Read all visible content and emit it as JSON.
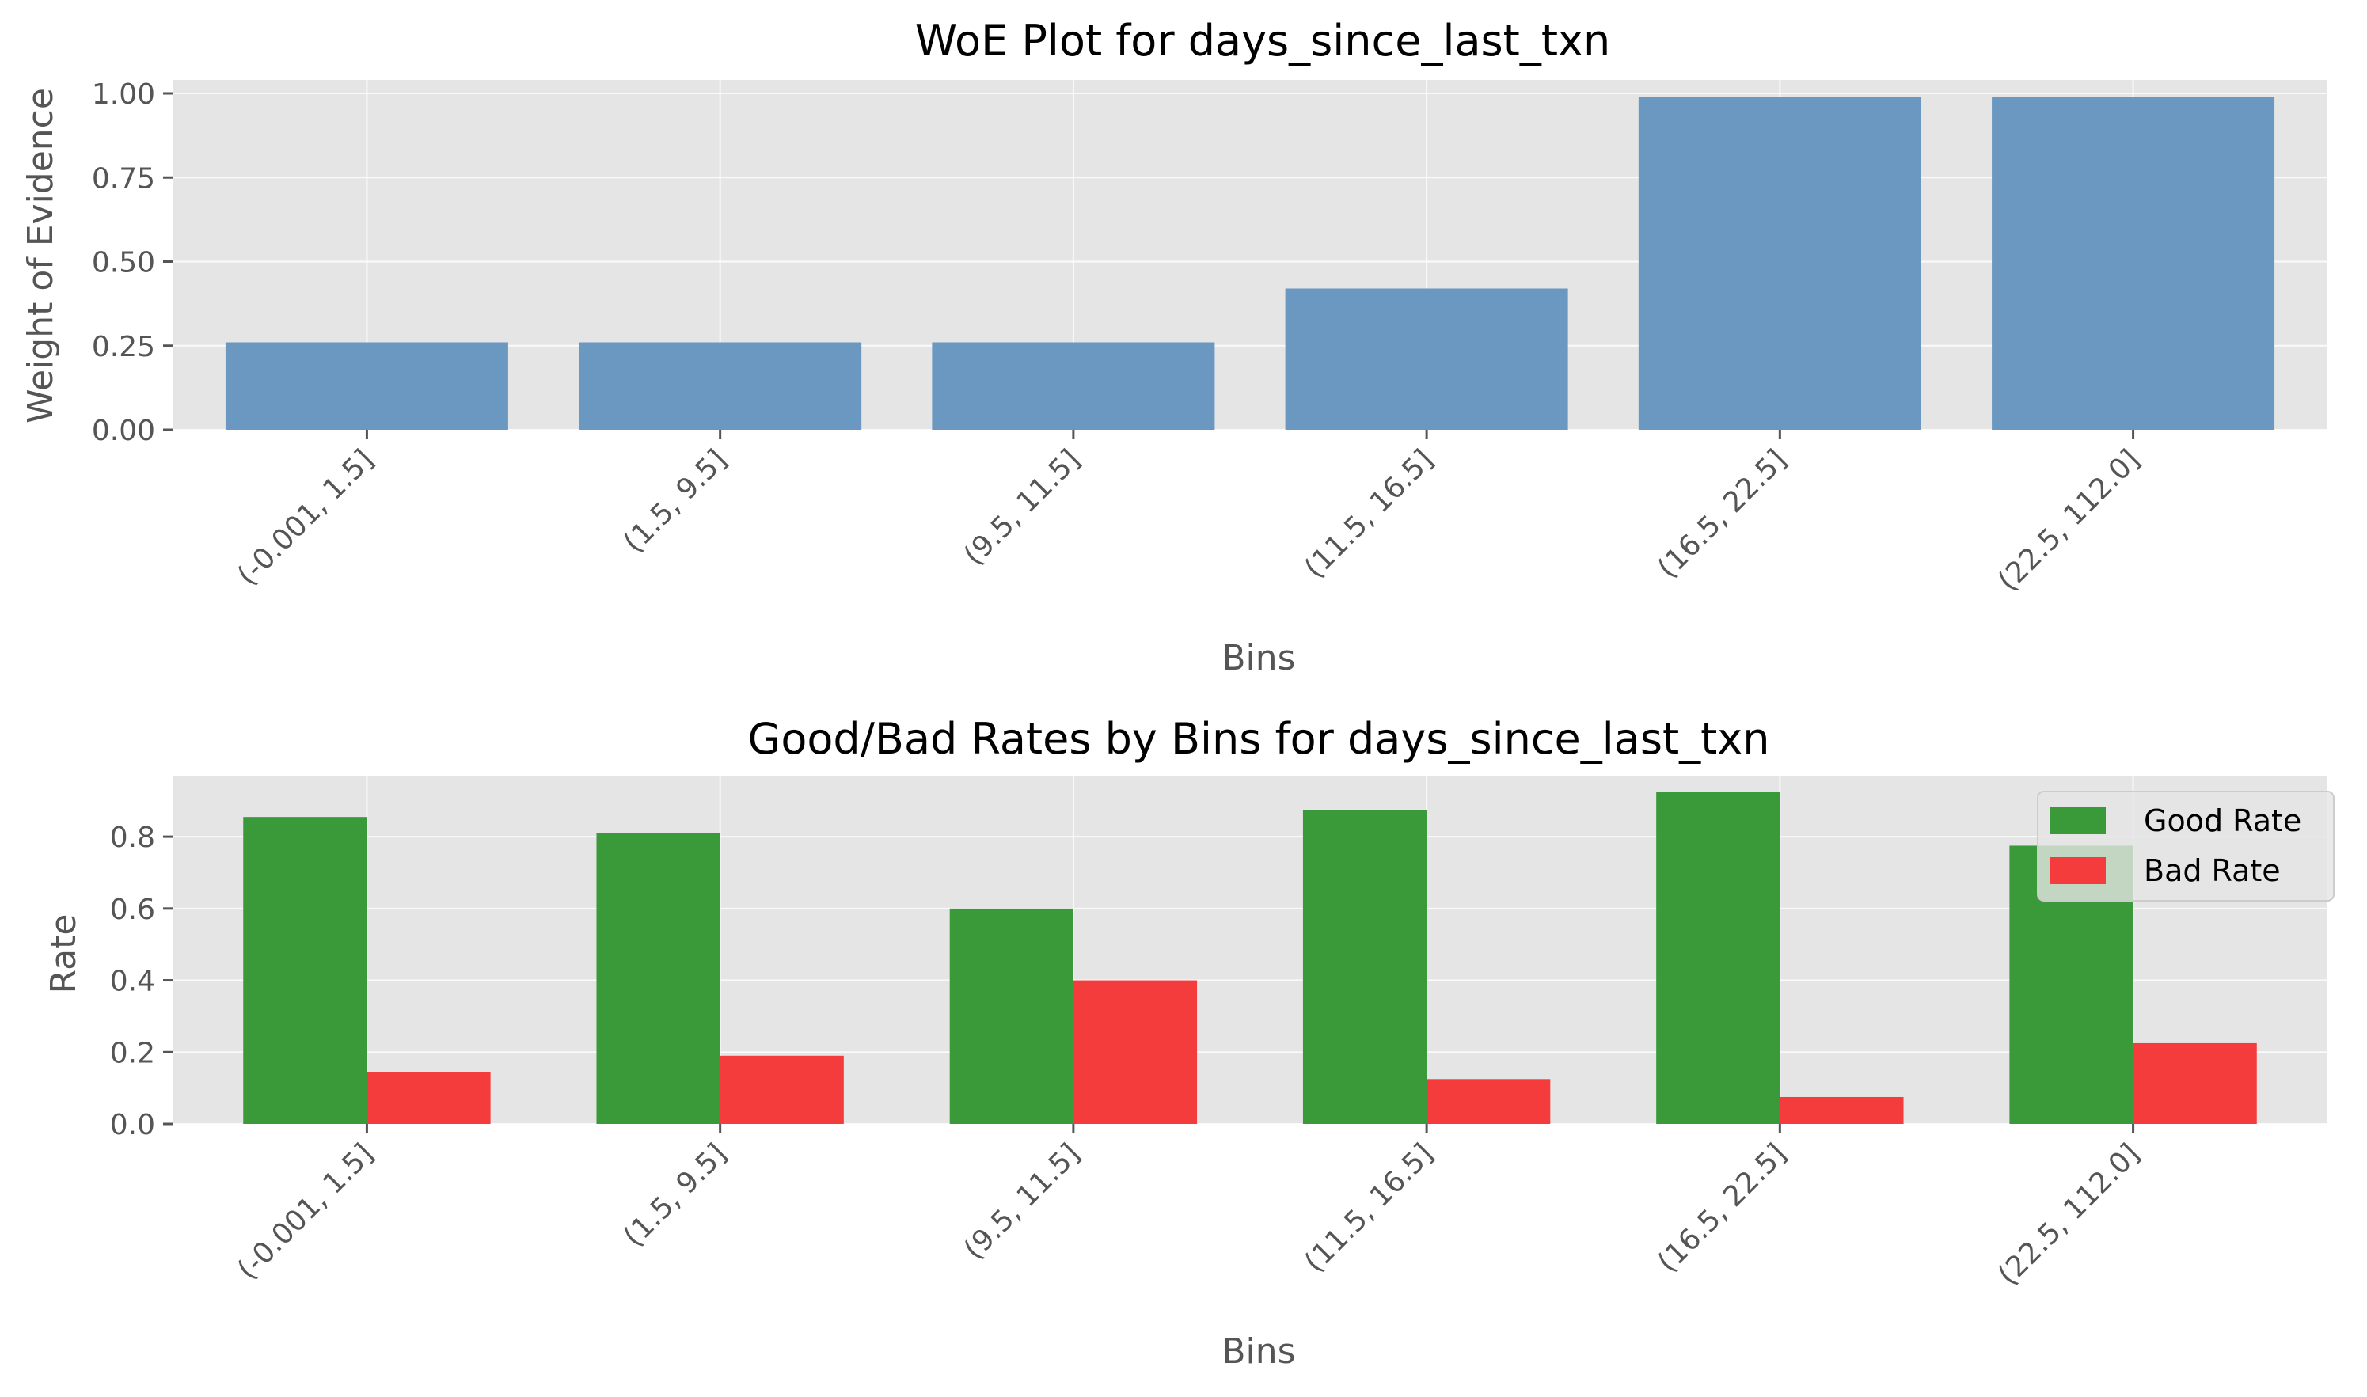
{
  "chart_data": [
    {
      "type": "bar",
      "title": "WoE Plot for days_since_last_txn",
      "xlabel": "Bins",
      "ylabel": "Weight of Evidence",
      "categories": [
        "(-0.001, 1.5]",
        "(1.5, 9.5]",
        "(9.5, 11.5]",
        "(11.5, 16.5]",
        "(16.5, 22.5]",
        "(22.5, 112.0]"
      ],
      "values": [
        0.26,
        0.26,
        0.26,
        0.42,
        0.99,
        0.99
      ],
      "ylim": [
        0,
        1.04
      ],
      "yticks": [
        "0.00",
        "0.25",
        "0.50",
        "0.75",
        "1.00"
      ],
      "grid": true,
      "colors": {
        "bar": "#6a98c0"
      }
    },
    {
      "type": "bar",
      "title": "Good/Bad Rates by Bins for days_since_last_txn",
      "xlabel": "Bins",
      "ylabel": "Rate",
      "categories": [
        "(-0.001, 1.5]",
        "(1.5, 9.5]",
        "(9.5, 11.5]",
        "(11.5, 16.5]",
        "(16.5, 22.5]",
        "(22.5, 112.0]"
      ],
      "series": [
        {
          "name": "Good Rate",
          "values": [
            0.855,
            0.81,
            0.6,
            0.875,
            0.925,
            0.775
          ],
          "color": "#3a9a3a"
        },
        {
          "name": "Bad Rate",
          "values": [
            0.145,
            0.19,
            0.4,
            0.125,
            0.075,
            0.225
          ],
          "color": "#f53c3c"
        }
      ],
      "ylim": [
        0,
        0.97
      ],
      "yticks": [
        "0.0",
        "0.2",
        "0.4",
        "0.6",
        "0.8"
      ],
      "grid": true,
      "legend": "top-right"
    }
  ]
}
